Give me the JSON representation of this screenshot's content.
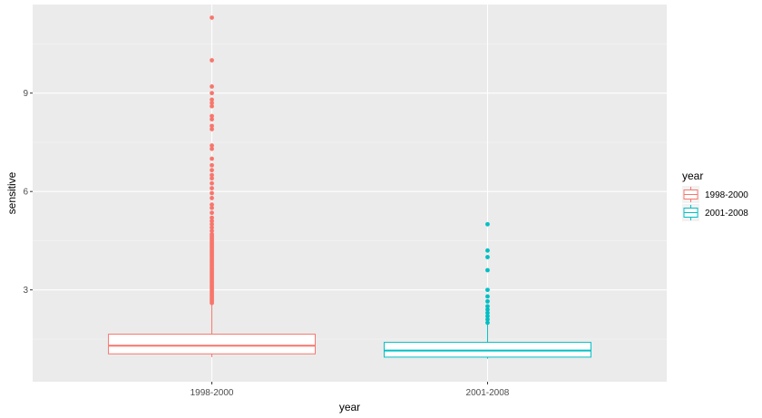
{
  "chart_data": {
    "type": "box",
    "xlabel": "year",
    "ylabel": "sensitive",
    "ylim": [
      0.2,
      11.7
    ],
    "yticks": [
      3,
      6,
      9
    ],
    "categories": [
      "1998-2000",
      "2001-2008"
    ],
    "legend": {
      "title": "year",
      "position": "right",
      "entries": [
        "1998-2000",
        "2001-2008"
      ]
    },
    "grid": true,
    "series": [
      {
        "name": "1998-2000",
        "color": "#F8766D",
        "box": {
          "lower_whisker": 0.95,
          "q1": 1.05,
          "median": 1.3,
          "q3": 1.65,
          "upper_whisker": 2.55
        },
        "outliers": [
          2.6,
          2.65,
          2.7,
          2.75,
          2.8,
          2.85,
          2.9,
          2.95,
          3.0,
          3.05,
          3.1,
          3.15,
          3.2,
          3.25,
          3.3,
          3.35,
          3.4,
          3.45,
          3.5,
          3.55,
          3.6,
          3.65,
          3.7,
          3.75,
          3.8,
          3.85,
          3.9,
          3.95,
          4.0,
          4.05,
          4.1,
          4.15,
          4.2,
          4.25,
          4.3,
          4.35,
          4.4,
          4.45,
          4.5,
          4.55,
          4.6,
          4.65,
          4.7,
          4.8,
          4.9,
          5.0,
          5.1,
          5.2,
          5.35,
          5.5,
          5.6,
          5.8,
          5.95,
          6.1,
          6.25,
          6.4,
          6.5,
          6.65,
          6.8,
          7.0,
          7.3,
          7.4,
          7.9,
          8.0,
          8.2,
          8.3,
          8.6,
          8.7,
          8.8,
          9.0,
          9.2,
          10.0,
          11.3
        ]
      },
      {
        "name": "2001-2008",
        "color": "#00BFC4",
        "box": {
          "lower_whisker": 0.9,
          "q1": 0.95,
          "median": 1.15,
          "q3": 1.4,
          "upper_whisker": 1.95
        },
        "outliers": [
          2.0,
          2.1,
          2.2,
          2.3,
          2.4,
          2.5,
          2.65,
          2.8,
          3.0,
          3.6,
          4.0,
          4.2,
          5.0
        ]
      }
    ]
  }
}
